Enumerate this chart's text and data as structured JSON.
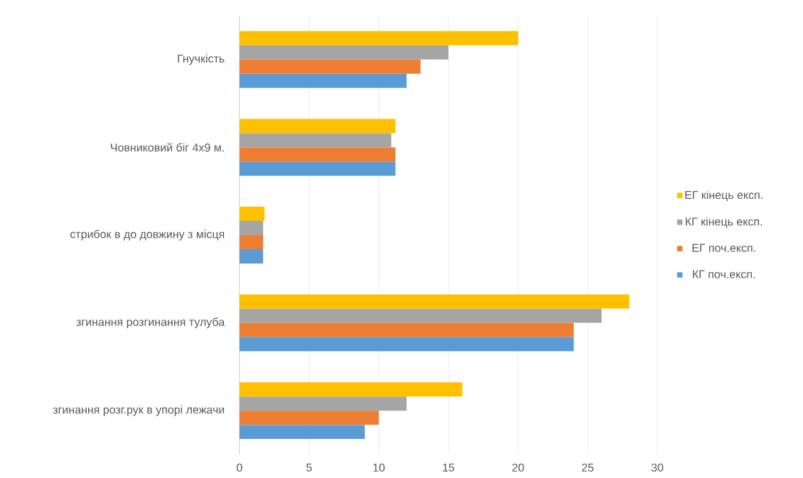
{
  "chart_data": {
    "type": "bar",
    "orientation": "horizontal",
    "categories": [
      "Гнучкість",
      "Човниковий біг 4х9 м.",
      "стрибок в до довжину з місця",
      "згинання  розгинання тулуба",
      "згинання розг.рук в упорі лежачи"
    ],
    "series": [
      {
        "name": "КГ поч.експ.",
        "color": "#5b9bd5",
        "values": [
          12,
          11.2,
          1.7,
          24,
          9
        ]
      },
      {
        "name": "ЕГ поч.експ.",
        "color": "#ed7d31",
        "values": [
          13,
          11.2,
          1.7,
          24,
          10
        ]
      },
      {
        "name": "КГ кінець експ.",
        "color": "#a5a5a5",
        "values": [
          15,
          10.9,
          1.7,
          26,
          12
        ]
      },
      {
        "name": "ЕГ кінець експ.",
        "color": "#ffc000",
        "values": [
          20,
          11.2,
          1.8,
          28,
          16
        ]
      }
    ],
    "xlim": [
      0,
      30
    ],
    "xticks": [
      0,
      5,
      10,
      15,
      20,
      25,
      30
    ],
    "grid": "x",
    "legend": "right"
  }
}
